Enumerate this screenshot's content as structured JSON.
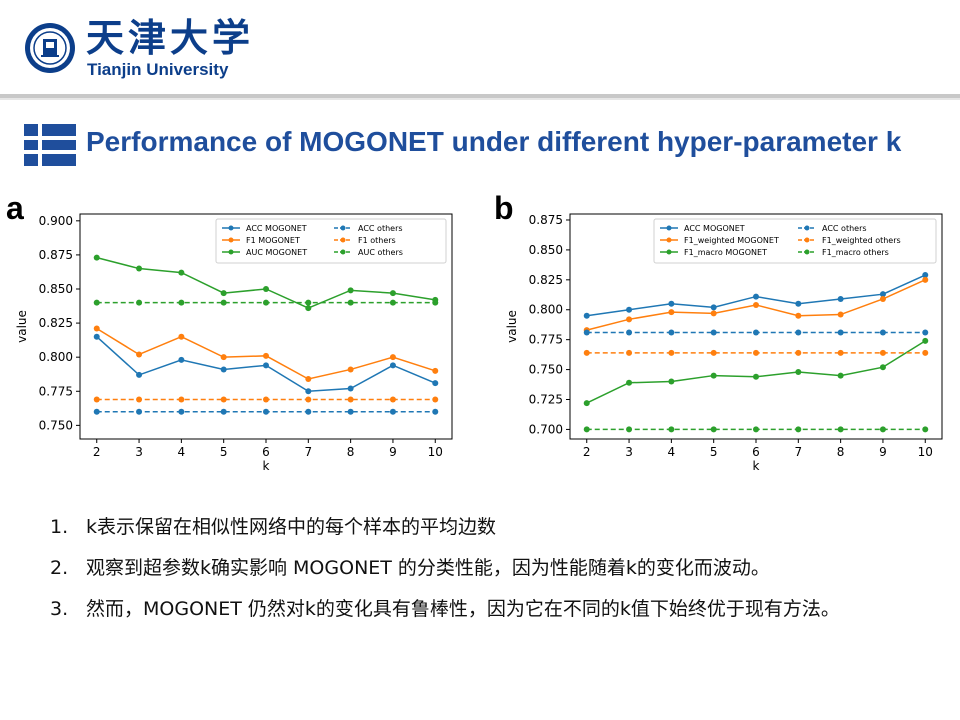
{
  "header": {
    "university_cn": "天津大学",
    "university_en": "Tianjin University",
    "brand_color": "#0c3e8a"
  },
  "slide": {
    "title": "Performance of MOGONET under different hyper-parameter k",
    "title_color": "#1f4e9c"
  },
  "panels": {
    "a": "a",
    "b": "b"
  },
  "bullets": [
    {
      "num": "1.",
      "text": "k表示保留在相似性网络中的每个样本的平均边数"
    },
    {
      "num": "2.",
      "text": "观察到超参数k确实影响 MOGONET 的分类性能，因为性能随着k的变化而波动。"
    },
    {
      "num": "3.",
      "text": "然而，MOGONET 仍然对k的变化具有鲁棒性，因为它在不同的k值下始终优于现有方法。"
    }
  ],
  "chart_data": [
    {
      "type": "line",
      "panel": "a",
      "xlabel": "k",
      "ylabel": "value",
      "x": [
        2,
        3,
        4,
        5,
        6,
        7,
        8,
        9,
        10
      ],
      "ylim": [
        0.74,
        0.905
      ],
      "yticks": [
        0.75,
        0.775,
        0.8,
        0.825,
        0.85,
        0.875,
        0.9
      ],
      "legend_placement": "top-right",
      "series": [
        {
          "name": "ACC MOGONET",
          "color": "#1f77b4",
          "dashed": false,
          "values": [
            0.815,
            0.787,
            0.798,
            0.791,
            0.794,
            0.775,
            0.777,
            0.794,
            0.781
          ]
        },
        {
          "name": "F1 MOGONET",
          "color": "#ff7f0e",
          "dashed": false,
          "values": [
            0.821,
            0.802,
            0.815,
            0.8,
            0.801,
            0.784,
            0.791,
            0.8,
            0.79
          ]
        },
        {
          "name": "AUC MOGONET",
          "color": "#2ca02c",
          "dashed": false,
          "values": [
            0.873,
            0.865,
            0.862,
            0.847,
            0.85,
            0.836,
            0.849,
            0.847,
            0.842
          ]
        },
        {
          "name": "ACC others",
          "color": "#1f77b4",
          "dashed": true,
          "values": [
            0.76,
            0.76,
            0.76,
            0.76,
            0.76,
            0.76,
            0.76,
            0.76,
            0.76
          ]
        },
        {
          "name": "F1 others",
          "color": "#ff7f0e",
          "dashed": true,
          "values": [
            0.769,
            0.769,
            0.769,
            0.769,
            0.769,
            0.769,
            0.769,
            0.769,
            0.769
          ]
        },
        {
          "name": "AUC others",
          "color": "#2ca02c",
          "dashed": true,
          "values": [
            0.84,
            0.84,
            0.84,
            0.84,
            0.84,
            0.84,
            0.84,
            0.84,
            0.84
          ]
        }
      ]
    },
    {
      "type": "line",
      "panel": "b",
      "xlabel": "k",
      "ylabel": "value",
      "x": [
        2,
        3,
        4,
        5,
        6,
        7,
        8,
        9,
        10
      ],
      "ylim": [
        0.692,
        0.88
      ],
      "yticks": [
        0.7,
        0.725,
        0.75,
        0.775,
        0.8,
        0.825,
        0.85,
        0.875
      ],
      "legend_placement": "top-right",
      "series": [
        {
          "name": "ACC MOGONET",
          "color": "#1f77b4",
          "dashed": false,
          "values": [
            0.795,
            0.8,
            0.805,
            0.802,
            0.811,
            0.805,
            0.809,
            0.813,
            0.829
          ]
        },
        {
          "name": "F1_weighted MOGONET",
          "color": "#ff7f0e",
          "dashed": false,
          "values": [
            0.783,
            0.792,
            0.798,
            0.797,
            0.804,
            0.795,
            0.796,
            0.809,
            0.825
          ]
        },
        {
          "name": "F1_macro MOGONET",
          "color": "#2ca02c",
          "dashed": false,
          "values": [
            0.722,
            0.739,
            0.74,
            0.745,
            0.744,
            0.748,
            0.745,
            0.752,
            0.774
          ]
        },
        {
          "name": "ACC others",
          "color": "#1f77b4",
          "dashed": true,
          "values": [
            0.781,
            0.781,
            0.781,
            0.781,
            0.781,
            0.781,
            0.781,
            0.781,
            0.781
          ]
        },
        {
          "name": "F1_weighted others",
          "color": "#ff7f0e",
          "dashed": true,
          "values": [
            0.764,
            0.764,
            0.764,
            0.764,
            0.764,
            0.764,
            0.764,
            0.764,
            0.764
          ]
        },
        {
          "name": "F1_macro others",
          "color": "#2ca02c",
          "dashed": true,
          "values": [
            0.7,
            0.7,
            0.7,
            0.7,
            0.7,
            0.7,
            0.7,
            0.7,
            0.7
          ]
        }
      ]
    }
  ]
}
